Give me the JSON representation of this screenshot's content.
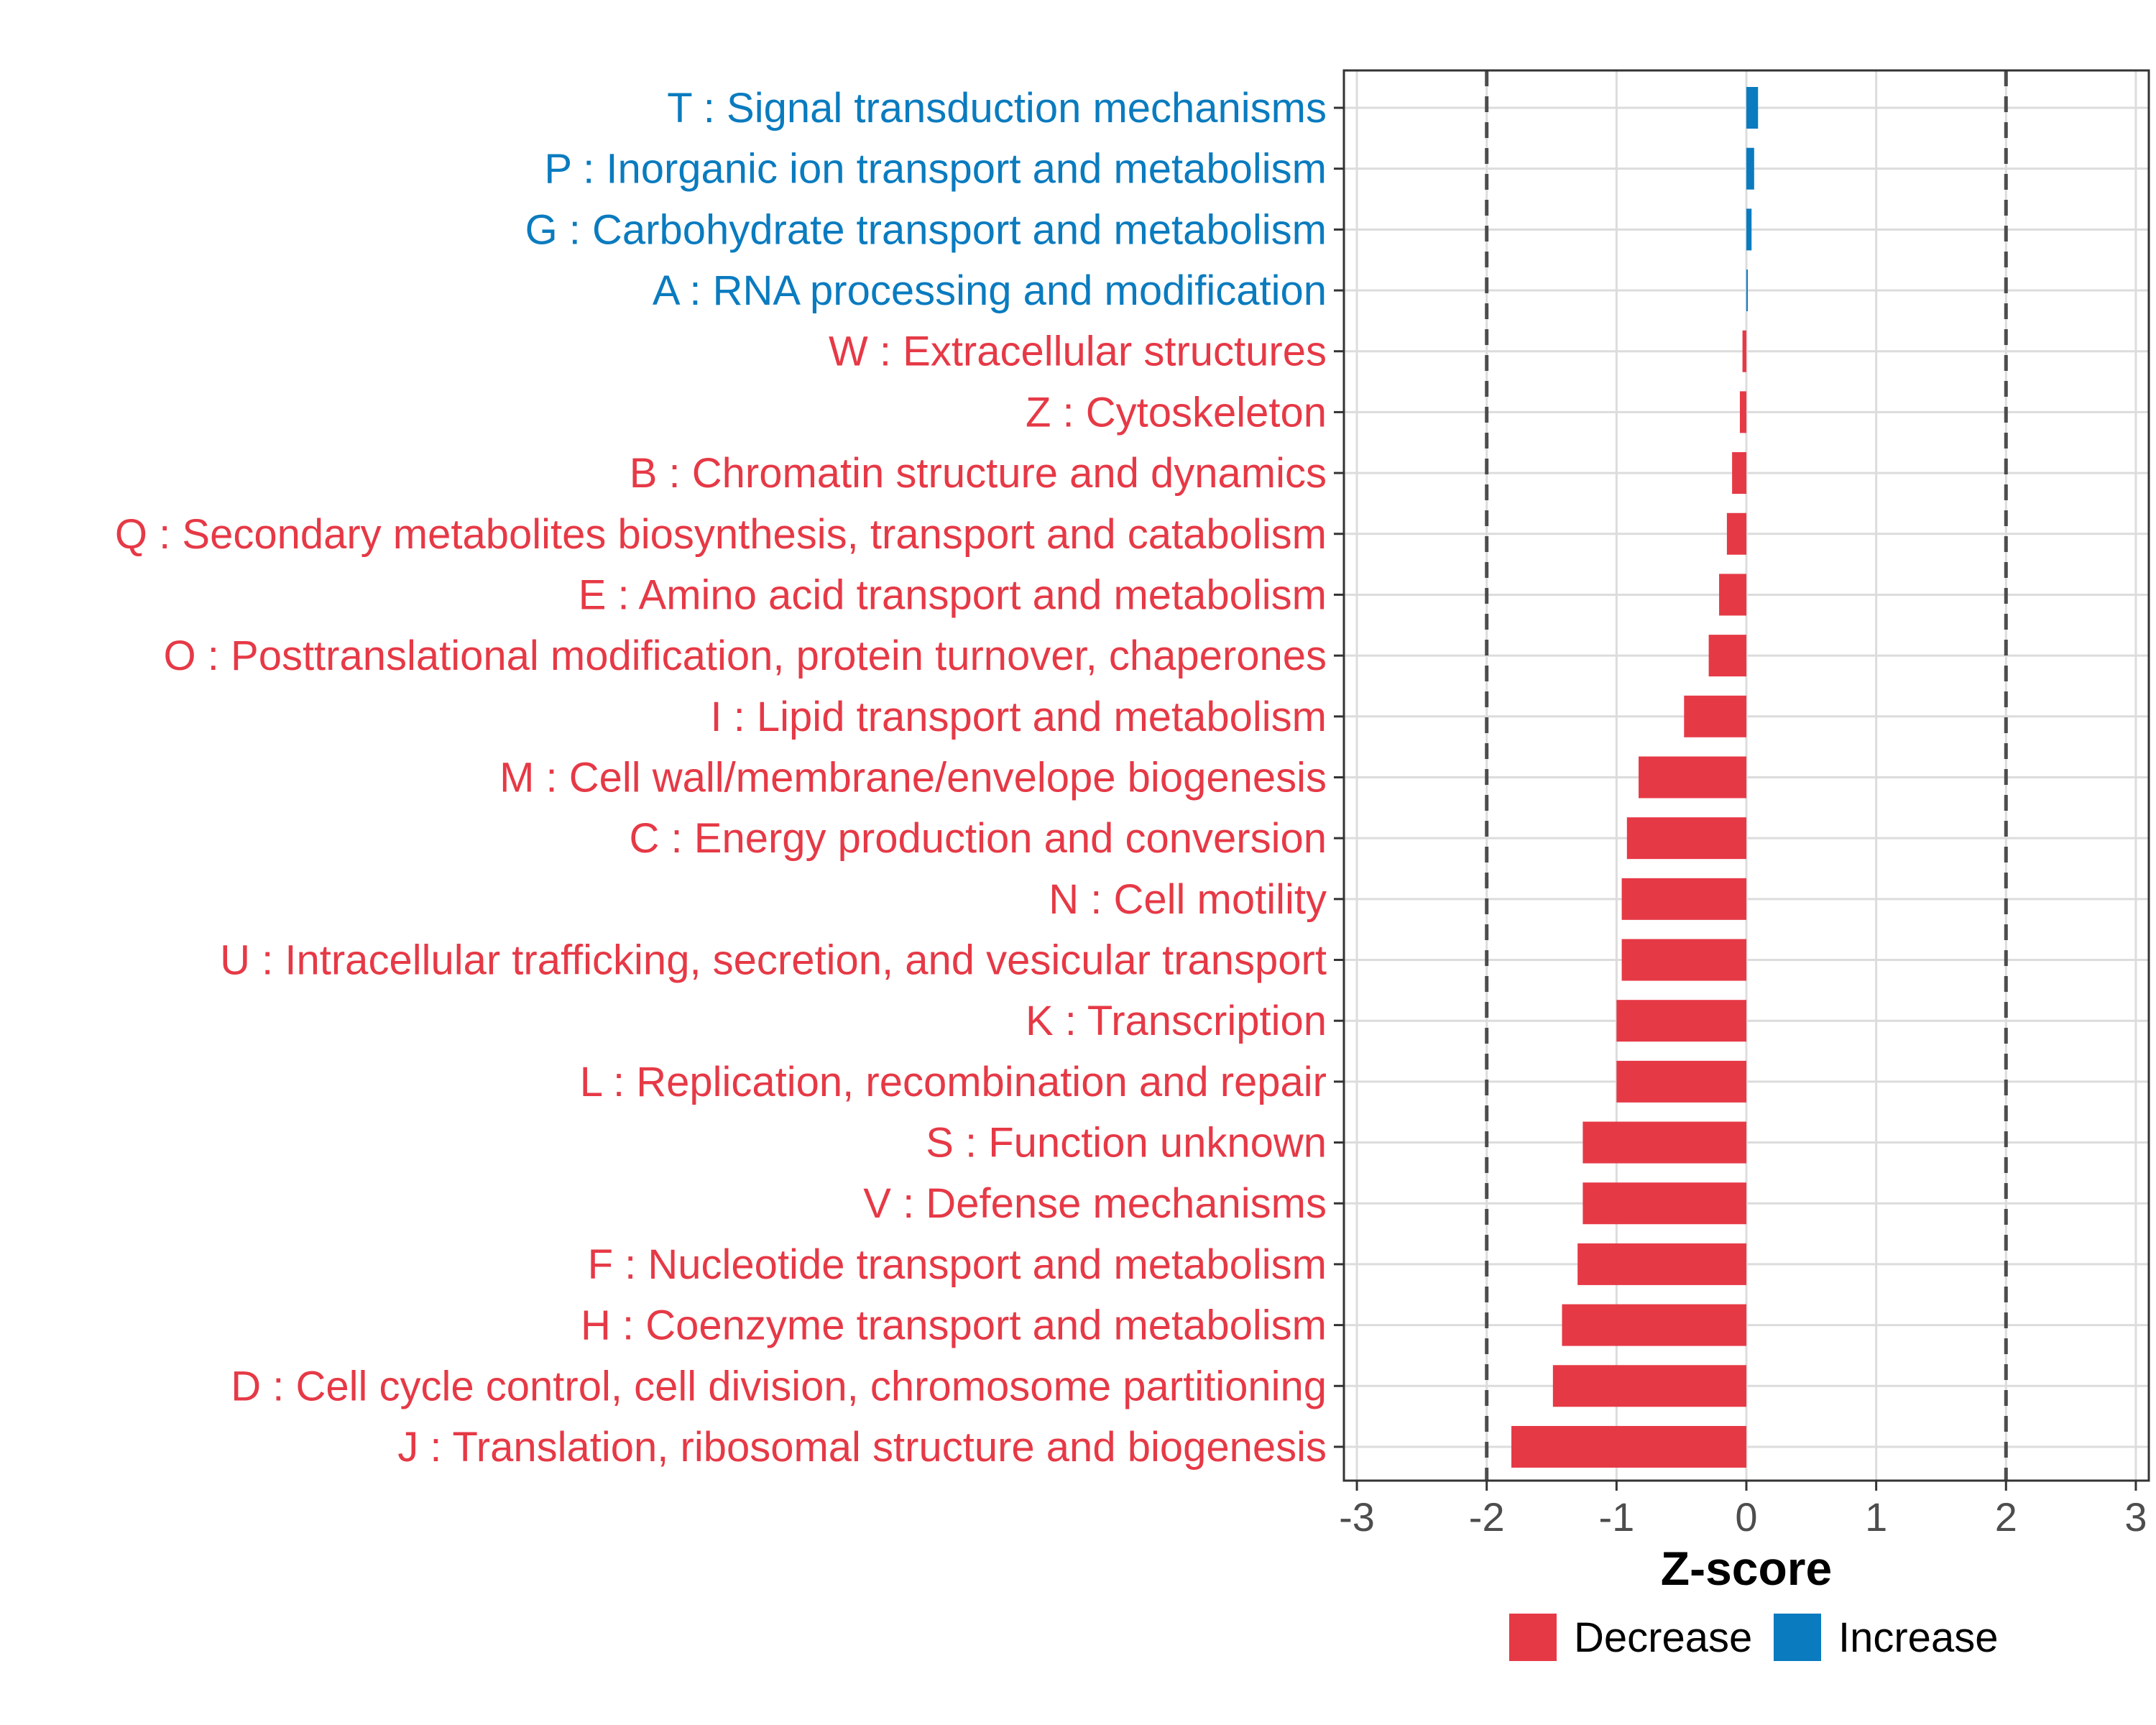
{
  "chart_data": {
    "type": "bar",
    "orientation": "horizontal",
    "xlabel": "Z-score",
    "xlim": [
      -3.1,
      3.1
    ],
    "xticks": [
      -3,
      -2,
      -1,
      0,
      1,
      2,
      3
    ],
    "xtick_labels": [
      "-3",
      "-2",
      "-1",
      "0",
      "1",
      "2",
      "3"
    ],
    "reference_lines": [
      -2,
      2
    ],
    "grid": true,
    "categories": [
      "T : Signal transduction mechanisms",
      "P : Inorganic ion transport and metabolism",
      "G : Carbohydrate transport and metabolism",
      "A : RNA processing and modification",
      "W : Extracellular structures",
      "Z : Cytoskeleton",
      "B : Chromatin structure and dynamics",
      "Q : Secondary metabolites biosynthesis, transport and catabolism",
      "E : Amino acid transport and metabolism",
      "O : Posttranslational modification, protein turnover, chaperones",
      "I : Lipid transport and metabolism",
      "M : Cell wall/membrane/envelope biogenesis",
      "C : Energy production and conversion",
      "N : Cell motility",
      "U : Intracellular trafficking, secretion, and vesicular transport",
      "K : Transcription",
      "L : Replication, recombination and repair",
      "S : Function unknown",
      "V : Defense mechanisms",
      "F : Nucleotide transport and metabolism",
      "H : Coenzyme transport and metabolism",
      "D : Cell cycle control, cell division, chromosome partitioning",
      "J : Translation, ribosomal structure and biogenesis"
    ],
    "values": [
      0.09,
      0.06,
      0.04,
      0.01,
      -0.03,
      -0.05,
      -0.11,
      -0.15,
      -0.21,
      -0.29,
      -0.48,
      -0.83,
      -0.92,
      -0.96,
      -0.96,
      -1.0,
      -1.0,
      -1.26,
      -1.26,
      -1.3,
      -1.42,
      -1.49,
      -1.81
    ],
    "groups": [
      "Increase",
      "Increase",
      "Increase",
      "Increase",
      "Decrease",
      "Decrease",
      "Decrease",
      "Decrease",
      "Decrease",
      "Decrease",
      "Decrease",
      "Decrease",
      "Decrease",
      "Decrease",
      "Decrease",
      "Decrease",
      "Decrease",
      "Decrease",
      "Decrease",
      "Decrease",
      "Decrease",
      "Decrease",
      "Decrease"
    ],
    "legend": {
      "position": "bottom",
      "items": [
        {
          "label": "Decrease",
          "color": "#e63946"
        },
        {
          "label": "Increase",
          "color": "#0a7bbf"
        }
      ]
    }
  },
  "colors": {
    "decrease": "#e63946",
    "increase": "#0a7bbf",
    "grid": "#dcdcdc",
    "frame": "#333333",
    "refline": "#4d4d4d"
  }
}
